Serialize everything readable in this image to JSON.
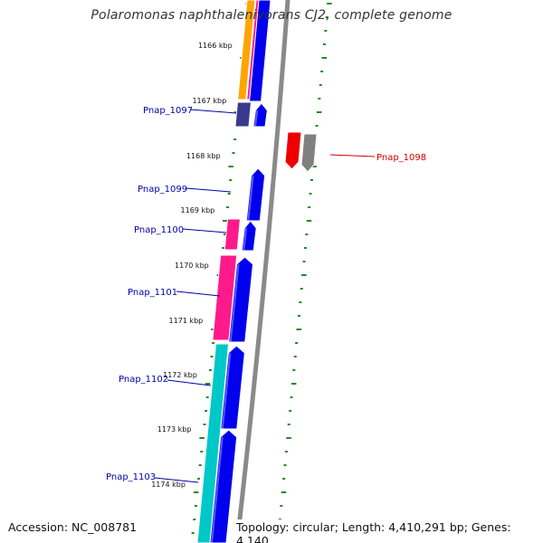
{
  "title": "Polaromonas naphthalenivorans CJ2, complete genome",
  "footer": {
    "accession": "Accession: NC_008781",
    "topology": "Topology: circular; Length: 4,410,291 bp; Genes: 4,140"
  },
  "colors": {
    "blue": "#0000ee",
    "pink": "#ff1a8c",
    "cyan": "#00c8c8",
    "orange": "#ffa500",
    "indigo": "#3a3a8c",
    "red": "#ee0000",
    "gray": "#808080",
    "tick_green": "#228b22",
    "label_blue": "#0000aa",
    "label_red": "#cc0000"
  },
  "kbp_labels": [
    "1166 kbp",
    "1167 kbp",
    "1168 kbp",
    "1169 kbp",
    "1170 kbp",
    "1171 kbp",
    "1172 kbp",
    "1173 kbp",
    "1174 kbp"
  ],
  "gene_labels": [
    {
      "name": "Pnap_1097",
      "color": "blue"
    },
    {
      "name": "Pnap_1098",
      "color": "red"
    },
    {
      "name": "Pnap_1099",
      "color": "blue"
    },
    {
      "name": "Pnap_1100",
      "color": "blue"
    },
    {
      "name": "Pnap_1101",
      "color": "blue"
    },
    {
      "name": "Pnap_1102",
      "color": "blue"
    },
    {
      "name": "Pnap_1103",
      "color": "blue"
    }
  ]
}
